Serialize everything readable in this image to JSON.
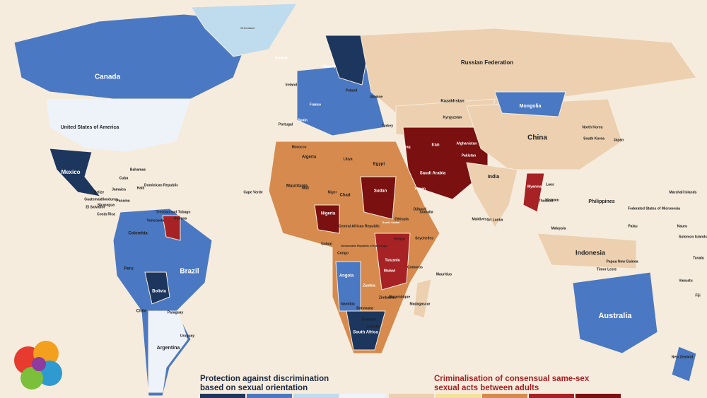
{
  "labels": [
    "Canada",
    "United States of America",
    "Mexico",
    "Cuba",
    "Bahamas",
    "Colombia",
    "Venezuela",
    "Peru",
    "Brazil",
    "Bolivia",
    "Chile",
    "Paraguay",
    "Argentina",
    "Uruguay",
    "Greenland",
    "Iceland",
    "Ireland",
    "Portugal",
    "Spain",
    "France",
    "Norway",
    "Poland",
    "Ukraine",
    "Turkey",
    "Russian Federation",
    "Kazakhstan",
    "Mongolia",
    "China",
    "North Korea",
    "South Korea",
    "Japan",
    "Iran",
    "Iraq",
    "Afghanistan",
    "Pakistan",
    "Saudi Arabia",
    "Yemen",
    "India",
    "Myanmar",
    "Thailand",
    "Philippines",
    "Malaysia",
    "Indonesia",
    "Papua New Guinea",
    "Australia",
    "New Zealand",
    "Morocco",
    "Algeria",
    "Libya",
    "Egypt",
    "Mauritania",
    "Mali",
    "Niger",
    "Chad",
    "Sudan",
    "Nigeria",
    "Ethiopia",
    "Kenya",
    "Tanzania",
    "Angola",
    "Zambia",
    "Namibia",
    "Botswana",
    "South Africa",
    "Madagascar",
    "Mauritius",
    "Maldives",
    "Sri Lanka",
    "Kyrgyzstan",
    "Somalia",
    "Lesotho",
    "Eswatini",
    "Zimbabwe",
    "Malawi",
    "Mozambique",
    "Comoros",
    "Seychelles",
    "Gabon",
    "Congo",
    "Democratic Republic of the Congo",
    "Central African Republic",
    "South Sudan",
    "Djibouti",
    "Cape Verde",
    "Jamaica",
    "Haiti",
    "Dominican Republic",
    "Belize",
    "Guatemala",
    "Honduras",
    "El Salvador",
    "Nicaragua",
    "Costa Rica",
    "Panama",
    "Trinidad and Tobago",
    "Guyana",
    "Vietnam",
    "Laos",
    "Timor Leste",
    "Solomon Islands",
    "Fiji",
    "Tuvalu",
    "Vanuatu",
    "Nauru",
    "Palau",
    "Federated States of Micronesia",
    "Marshall Islands"
  ],
  "legend": {
    "protection": [
      "Protection against discrimination",
      "based on sexual orientation"
    ],
    "criminalisation": [
      "Criminalisation of consensual same-sex",
      "sexual acts between adults"
    ]
  }
}
